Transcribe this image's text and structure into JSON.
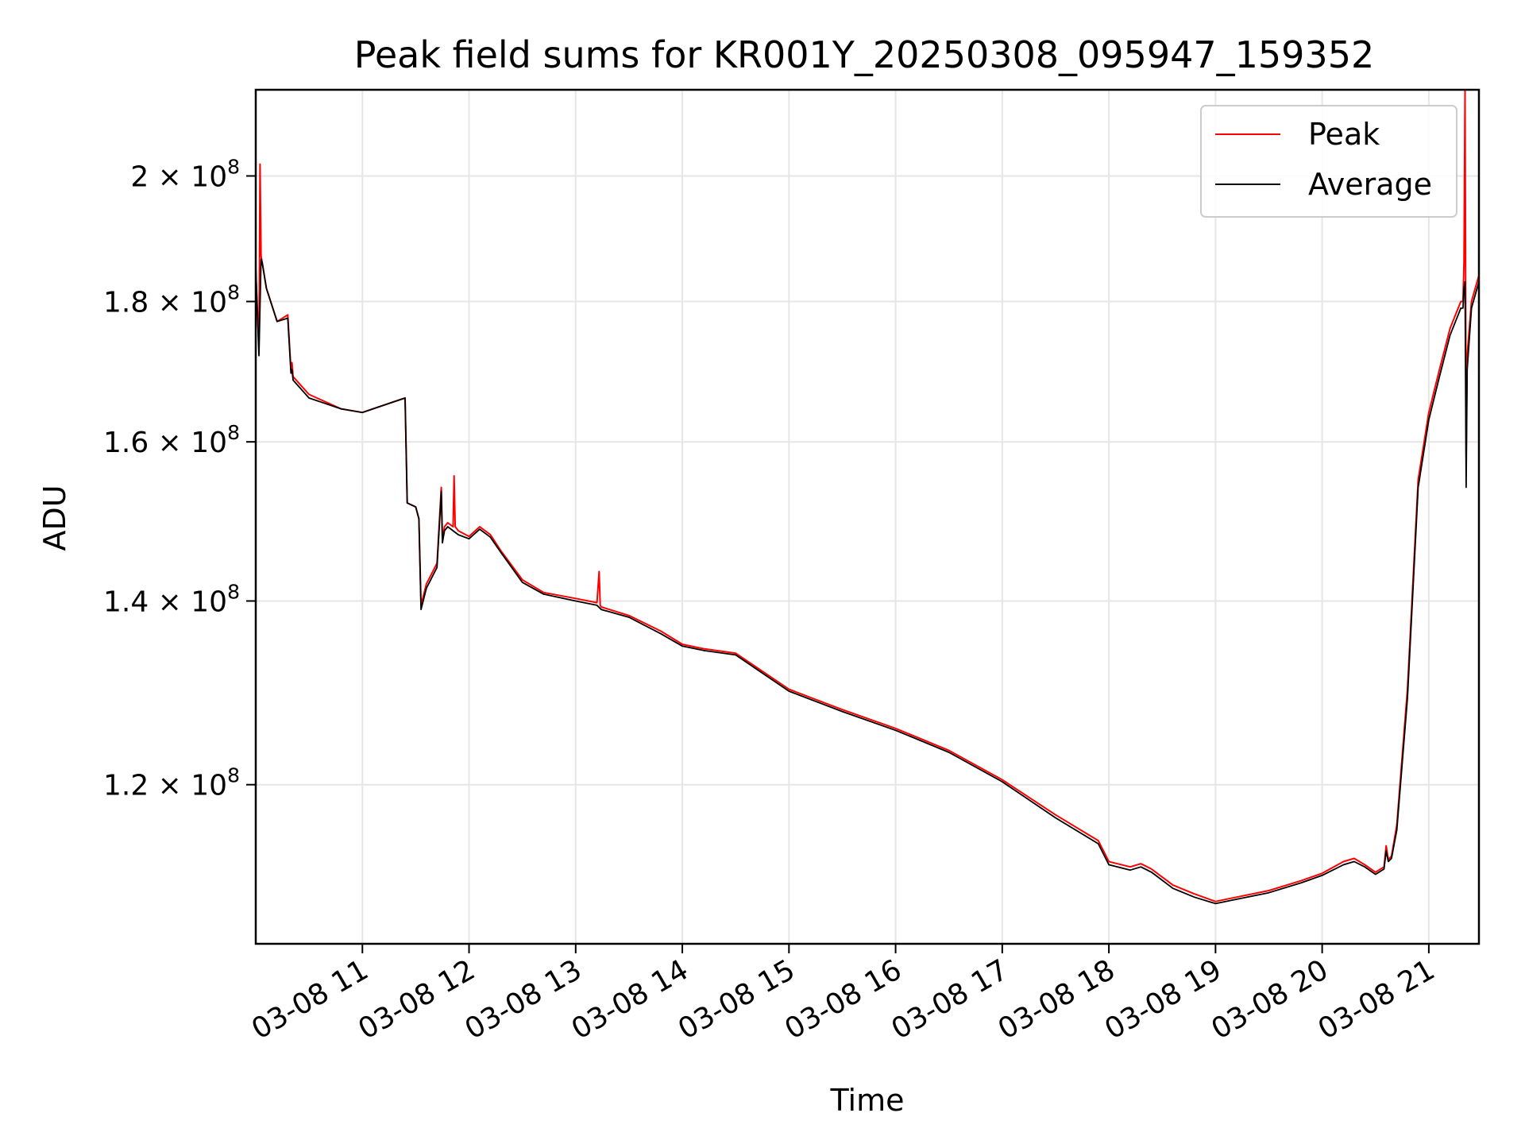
{
  "chart_data": {
    "type": "line",
    "title": "Peak field sums for KR001Y_20250308_095947_159352",
    "xlabel": "Time",
    "ylabel": "ADU",
    "yscale": "log",
    "grid": true,
    "legend_position": "top-right",
    "x_unit": "hours of day on 03-08",
    "xlim": [
      10.0,
      21.47
    ],
    "ylim": [
      105000000.0,
      215000000.0
    ],
    "x_ticks": [
      {
        "value": 11,
        "label": "03-08 11"
      },
      {
        "value": 12,
        "label": "03-08 12"
      },
      {
        "value": 13,
        "label": "03-08 13"
      },
      {
        "value": 14,
        "label": "03-08 14"
      },
      {
        "value": 15,
        "label": "03-08 15"
      },
      {
        "value": 16,
        "label": "03-08 16"
      },
      {
        "value": 17,
        "label": "03-08 17"
      },
      {
        "value": 18,
        "label": "03-08 18"
      },
      {
        "value": 19,
        "label": "03-08 19"
      },
      {
        "value": 20,
        "label": "03-08 20"
      },
      {
        "value": 21,
        "label": "03-08 21"
      }
    ],
    "y_ticks": [
      {
        "value": 120000000.0,
        "mantissa": "1.2",
        "base": "10",
        "exp": "8"
      },
      {
        "value": 140000000.0,
        "mantissa": "1.4",
        "base": "10",
        "exp": "8"
      },
      {
        "value": 160000000.0,
        "mantissa": "1.6",
        "base": "10",
        "exp": "8"
      },
      {
        "value": 180000000.0,
        "mantissa": "1.8",
        "base": "10",
        "exp": "8"
      },
      {
        "value": 200000000.0,
        "mantissa": "2",
        "base": "10",
        "exp": "8"
      }
    ],
    "series": [
      {
        "name": "Peak",
        "color": "#ff0000",
        "x": [
          10.0,
          10.03,
          10.04,
          10.05,
          10.06,
          10.1,
          10.2,
          10.3,
          10.33,
          10.34,
          10.35,
          10.5,
          10.8,
          11.0,
          11.1,
          11.3,
          11.4,
          11.42,
          11.5,
          11.53,
          11.55,
          11.6,
          11.7,
          11.74,
          11.75,
          11.77,
          11.8,
          11.85,
          11.86,
          11.87,
          11.9,
          12.0,
          12.1,
          12.2,
          12.3,
          12.5,
          12.7,
          13.0,
          13.2,
          13.22,
          13.23,
          13.24,
          13.5,
          13.8,
          14.0,
          14.2,
          14.5,
          15.0,
          15.5,
          16.0,
          16.5,
          17.0,
          17.5,
          17.9,
          18.0,
          18.2,
          18.3,
          18.4,
          18.6,
          18.8,
          19.0,
          19.2,
          19.5,
          19.8,
          20.0,
          20.2,
          20.3,
          20.4,
          20.5,
          20.58,
          20.6,
          20.62,
          20.65,
          20.7,
          20.8,
          20.9,
          21.0,
          21.1,
          21.2,
          21.3,
          21.32,
          21.33,
          21.34,
          21.35,
          21.36,
          21.4,
          21.47
        ],
        "values": [
          185000000.0,
          173000000.0,
          202000000.0,
          187000000.0,
          186000000.0,
          182000000.0,
          177000000.0,
          178000000.0,
          170000000.0,
          171000000.0,
          169000000.0,
          166500000.0,
          164500000.0,
          164000000.0,
          164500000.0,
          165500000.0,
          166000000.0,
          152000000.0,
          151500000.0,
          150000000.0,
          139500000.0,
          142000000.0,
          144500000.0,
          154000000.0,
          147500000.0,
          149000000.0,
          149500000.0,
          149000000.0,
          155500000.0,
          149000000.0,
          148500000.0,
          147800000.0,
          149000000.0,
          148000000.0,
          146000000.0,
          142500000.0,
          141000000.0,
          140300000.0,
          139800000.0,
          143500000.0,
          139500000.0,
          139300000.0,
          138300000.0,
          136500000.0,
          135000000.0,
          134500000.0,
          134000000.0,
          130000000.0,
          127800000.0,
          125800000.0,
          123500000.0,
          120500000.0,
          117000000.0,
          114500000.0,
          112500000.0,
          112000000.0,
          112300000.0,
          111800000.0,
          110300000.0,
          109500000.0,
          108800000.0,
          109200000.0,
          109800000.0,
          110700000.0,
          111400000.0,
          112500000.0,
          112800000.0,
          112200000.0,
          111500000.0,
          112000000.0,
          114000000.0,
          112700000.0,
          113000000.0,
          116000000.0,
          130000000.0,
          155000000.0,
          164000000.0,
          170000000.0,
          176000000.0,
          180000000.0,
          180000000.0,
          186000000.0,
          215000000.0,
          158000000.0,
          172000000.0,
          180000000.0,
          184000000.0
        ]
      },
      {
        "name": "Average",
        "color": "#000000",
        "x": [
          10.0,
          10.03,
          10.05,
          10.06,
          10.1,
          10.2,
          10.3,
          10.33,
          10.34,
          10.35,
          10.5,
          10.8,
          11.0,
          11.1,
          11.3,
          11.4,
          11.42,
          11.5,
          11.53,
          11.55,
          11.6,
          11.7,
          11.74,
          11.75,
          11.77,
          11.8,
          11.9,
          12.0,
          12.1,
          12.2,
          12.3,
          12.5,
          12.7,
          13.0,
          13.2,
          13.24,
          13.5,
          13.8,
          14.0,
          14.2,
          14.5,
          15.0,
          15.5,
          16.0,
          16.5,
          17.0,
          17.5,
          17.9,
          18.0,
          18.2,
          18.3,
          18.4,
          18.6,
          18.8,
          19.0,
          19.2,
          19.5,
          19.8,
          20.0,
          20.2,
          20.3,
          20.4,
          20.5,
          20.58,
          20.6,
          20.62,
          20.65,
          20.7,
          20.8,
          20.9,
          21.0,
          21.1,
          21.2,
          21.3,
          21.32,
          21.33,
          21.34,
          21.35,
          21.36,
          21.4,
          21.47
        ],
        "values": [
          185000000.0,
          172000000.0,
          186500000.0,
          186000000.0,
          182000000.0,
          177000000.0,
          177500000.0,
          169500000.0,
          170000000.0,
          168500000.0,
          166000000.0,
          164500000.0,
          164000000.0,
          164500000.0,
          165500000.0,
          166000000.0,
          152000000.0,
          151500000.0,
          150000000.0,
          139000000.0,
          141500000.0,
          144000000.0,
          153500000.0,
          147000000.0,
          148500000.0,
          149000000.0,
          148000000.0,
          147500000.0,
          148700000.0,
          147700000.0,
          145800000.0,
          142200000.0,
          140800000.0,
          140000000.0,
          139500000.0,
          139000000.0,
          138100000.0,
          136200000.0,
          134800000.0,
          134300000.0,
          133800000.0,
          129800000.0,
          127600000.0,
          125600000.0,
          123300000.0,
          120300000.0,
          116700000.0,
          114200000.0,
          112200000.0,
          111700000.0,
          112000000.0,
          111500000.0,
          110000000.0,
          109200000.0,
          108600000.0,
          109000000.0,
          109600000.0,
          110500000.0,
          111200000.0,
          112200000.0,
          112500000.0,
          112000000.0,
          111300000.0,
          111800000.0,
          113500000.0,
          112500000.0,
          112800000.0,
          115500000.0,
          129000000.0,
          154000000.0,
          163000000.0,
          169000000.0,
          175000000.0,
          179000000.0,
          179000000.0,
          182000000.0,
          183000000.0,
          154000000.0,
          170000000.0,
          179000000.0,
          183000000.0
        ]
      }
    ]
  }
}
